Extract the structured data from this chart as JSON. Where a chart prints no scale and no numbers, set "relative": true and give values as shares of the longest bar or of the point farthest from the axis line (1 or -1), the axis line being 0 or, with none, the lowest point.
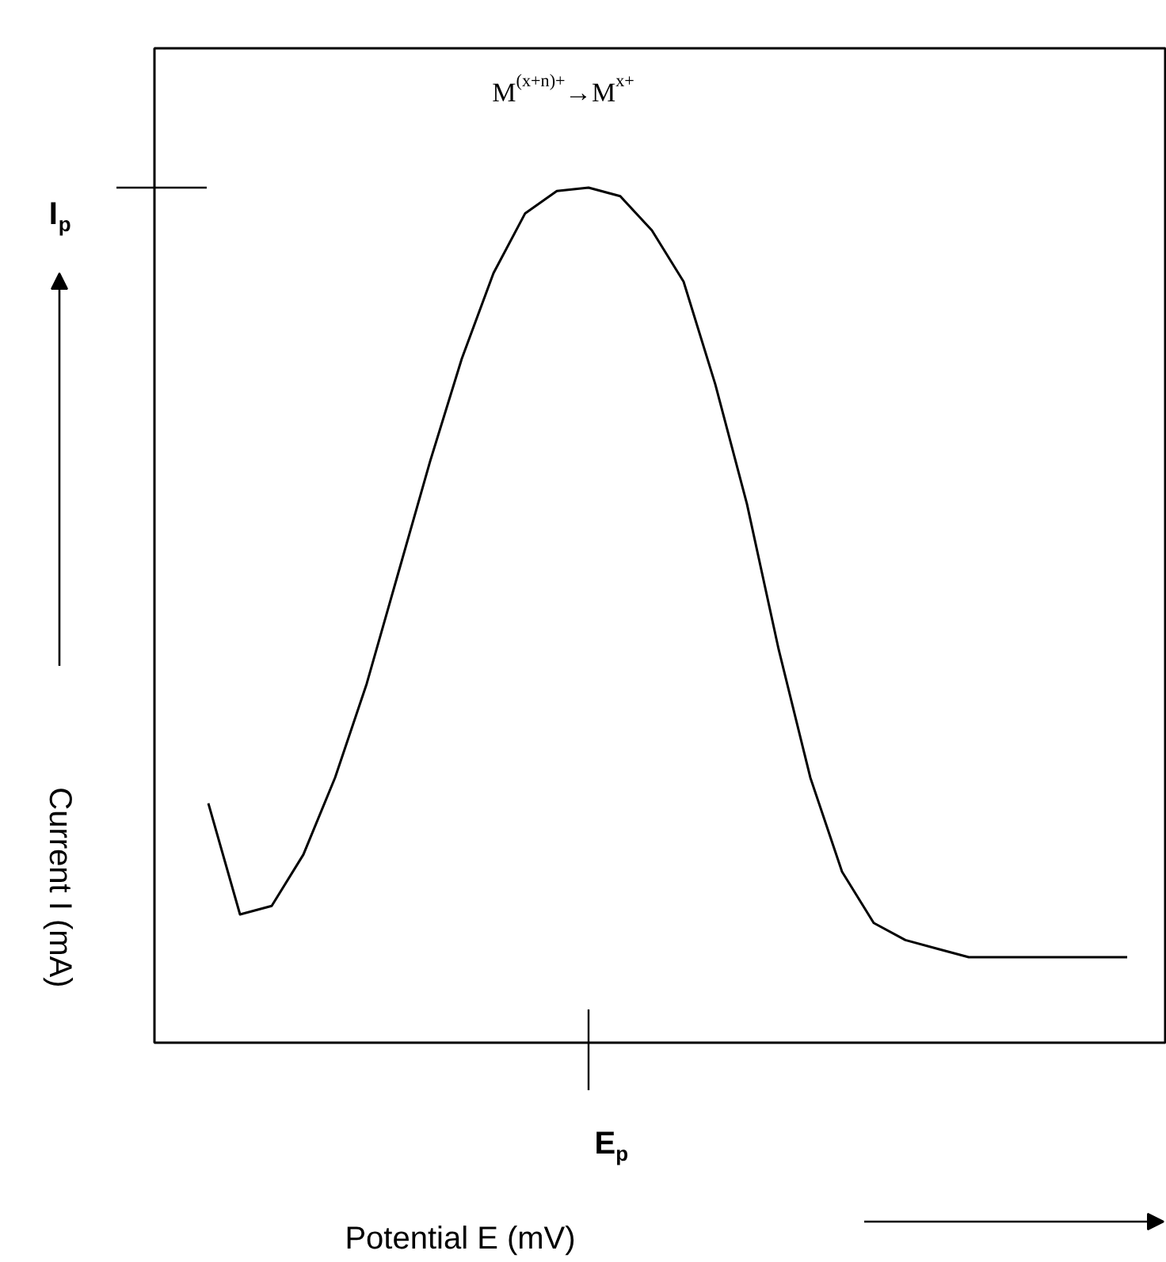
{
  "chart_data": {
    "type": "line",
    "relative": true,
    "color": "#000000",
    "ylabel": "Current I (mA)",
    "categories": [
      null,
      null,
      null,
      null,
      null,
      null,
      null,
      null,
      null,
      null,
      null,
      null,
      null,
      null,
      null,
      null,
      null,
      null,
      null,
      null,
      null,
      null,
      null,
      null,
      null,
      null,
      null,
      null,
      null,
      null
    ],
    "values": [
      0.28,
      0.15,
      0.16,
      0.22,
      0.31,
      0.42,
      0.55,
      0.68,
      0.8,
      0.9,
      0.97,
      0.996,
      1,
      0.99,
      0.95,
      0.89,
      0.77,
      0.63,
      0.46,
      0.31,
      0.2,
      0.14,
      0.12,
      0.11,
      0.1,
      0.1,
      0.1,
      0.1,
      0.1,
      0.1
    ],
    "annotations": [
      "M$^{(x+n)+}$→M$^{x+}$",
      "I$_{p}$",
      "E$_{p}$",
      "Potential E (mV)"
    ]
  }
}
